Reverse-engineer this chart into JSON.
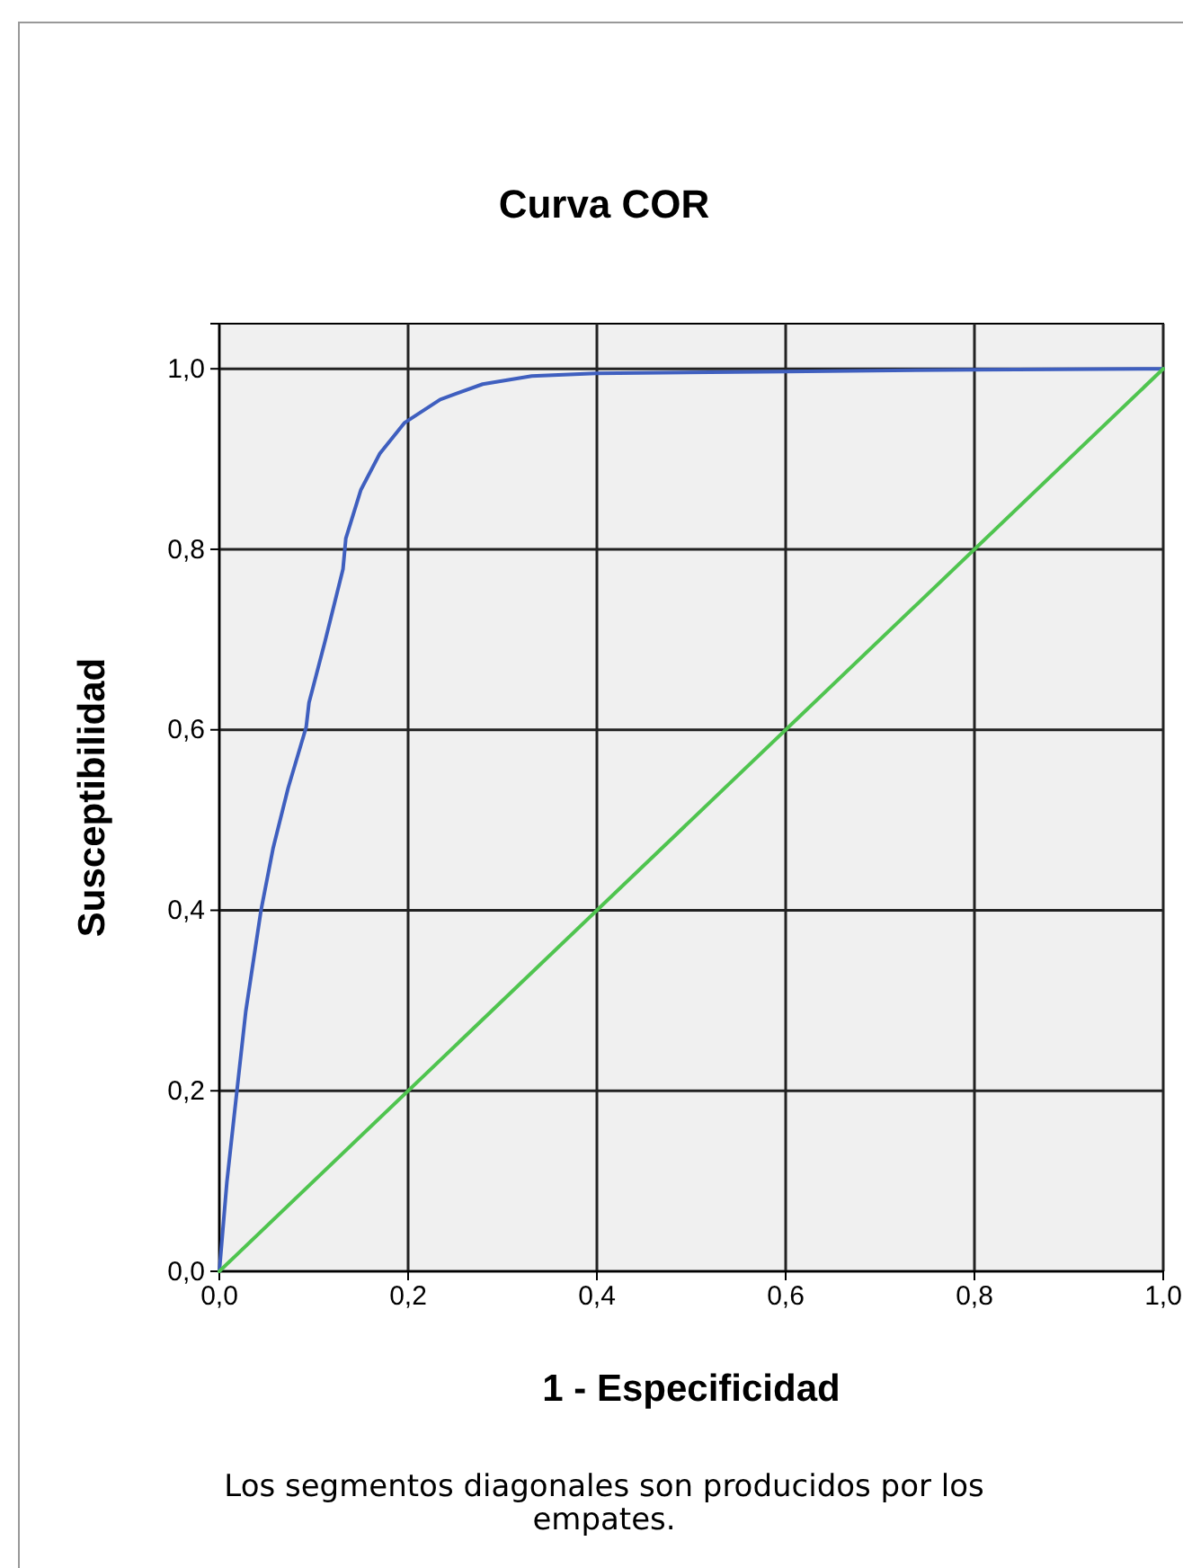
{
  "chart_data": {
    "type": "line",
    "title": "Curva COR",
    "xlabel": "1 - Especificidad",
    "ylabel": "Susceptibilidad",
    "annotations": [
      "Los segmentos diagonales son producidos por los empates."
    ],
    "xlim": [
      0,
      1
    ],
    "ylim": [
      0,
      1.05
    ],
    "xticks": [
      {
        "value": 0,
        "label": "0,0"
      },
      {
        "value": 0.2,
        "label": "0,2"
      },
      {
        "value": 0.4,
        "label": "0,4"
      },
      {
        "value": 0.6,
        "label": "0,6"
      },
      {
        "value": 0.8,
        "label": "0,8"
      },
      {
        "value": 1,
        "label": "1,0"
      }
    ],
    "yticks": [
      {
        "value": 0,
        "label": "0,0"
      },
      {
        "value": 0.2,
        "label": "0,2"
      },
      {
        "value": 0.4,
        "label": "0,4"
      },
      {
        "value": 0.6,
        "label": "0,6"
      },
      {
        "value": 0.8,
        "label": "0,8"
      },
      {
        "value": 1,
        "label": "1,0"
      }
    ],
    "grid": true,
    "line_style": "solid",
    "marker": "none",
    "series": [
      {
        "color": "#3f5fbf",
        "x": [
          0,
          0.008,
          0.018,
          0.028,
          0.044,
          0.057,
          0.073,
          0.092,
          0.095,
          0.112,
          0.131,
          0.134,
          0.15,
          0.17,
          0.196,
          0.234,
          0.279,
          0.331,
          0.399,
          0.6,
          0.8,
          1
        ],
        "values": [
          0,
          0.099,
          0.194,
          0.288,
          0.399,
          0.469,
          0.536,
          0.603,
          0.63,
          0.698,
          0.778,
          0.812,
          0.866,
          0.906,
          0.94,
          0.966,
          0.983,
          0.992,
          0.995,
          0.997,
          0.999,
          1
        ]
      },
      {
        "color": "#4fc44f",
        "x": [
          0,
          1
        ],
        "values": [
          0,
          1
        ]
      }
    ]
  }
}
